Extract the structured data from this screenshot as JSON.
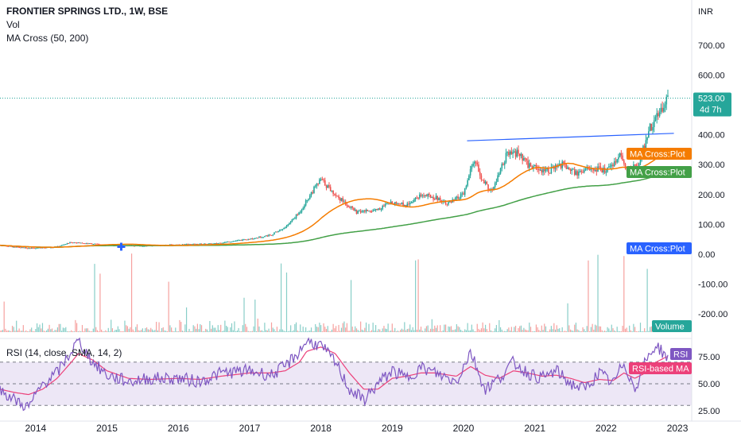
{
  "legend": {
    "symbol": "FRONTIER SPRINGS LTD., 1W, BSE",
    "vol": "Vol",
    "ma": "MA Cross (50, 200)",
    "rsi": "RSI (14, close, SMA, 14, 2)"
  },
  "colors": {
    "up": "#26a69a",
    "down": "#ef5350",
    "ma_fast": "#f57c00",
    "ma_slow": "#43a047",
    "trendline": "#2962ff",
    "rsi": "#7e57c2",
    "rsi_ma": "#ec407a",
    "rsi_band": "#ede7f6",
    "last_price": "#26a69a",
    "ma_cross_marker": "#2962ff"
  },
  "price_axis": {
    "currency": "INR",
    "ticks": [
      "700.00",
      "600.00",
      "500.00",
      "400.00",
      "300.00",
      "200.00",
      "100.00",
      "0.00",
      "-100.00",
      "-200.00"
    ]
  },
  "rsi_axis": {
    "ticks": [
      "75.00",
      "50.00",
      "25.00"
    ]
  },
  "time_axis": {
    "ticks": [
      "2014",
      "2015",
      "2016",
      "2017",
      "2018",
      "2019",
      "2020",
      "2021",
      "2022",
      "2023"
    ]
  },
  "tags": {
    "last_price": "523.00",
    "countdown": "4d 7h",
    "ma_cross_plot": "MA Cross:Plot",
    "volume": "Volume",
    "rsi": "RSI",
    "rsi_ma": "RSI-based MA"
  },
  "chart_data": {
    "type": "line",
    "title": "FRONTIER SPRINGS LTD., 1W, BSE",
    "x": [
      2013.5,
      2013.8,
      2014.0,
      2014.3,
      2014.5,
      2014.8,
      2015.0,
      2015.5,
      2016.0,
      2016.5,
      2016.8,
      2017.0,
      2017.3,
      2017.5,
      2017.7,
      2017.85,
      2018.0,
      2018.2,
      2018.5,
      2018.8,
      2019.0,
      2019.2,
      2019.4,
      2019.6,
      2019.8,
      2020.0,
      2020.15,
      2020.25,
      2020.4,
      2020.6,
      2020.75,
      2020.9,
      2021.0,
      2021.2,
      2021.4,
      2021.6,
      2021.8,
      2022.0,
      2022.2,
      2022.3,
      2022.45,
      2022.6,
      2022.7,
      2022.8,
      2022.85
    ],
    "series": [
      {
        "values": [
          30,
          22,
          20,
          25,
          40,
          35,
          30,
          28,
          32,
          35,
          45,
          50,
          65,
          90,
          140,
          200,
          250,
          200,
          140,
          150,
          175,
          165,
          200,
          190,
          170,
          200,
          320,
          250,
          210,
          330,
          340,
          300,
          290,
          280,
          300,
          270,
          290,
          280,
          330,
          280,
          300,
          420,
          450,
          500,
          523
        ]
      }
    ],
    "ylim": [
      -250,
      750
    ],
    "xlim": [
      2013.5,
      2023.2
    ],
    "trendline": [
      [
        2020.05,
        380
      ],
      [
        2022.95,
        405
      ]
    ],
    "ma_cross_marker": [
      2015.2,
      25
    ],
    "rsi": {
      "ylim": [
        20,
        95
      ],
      "bands": [
        30,
        70
      ],
      "x": [
        2013.5,
        2013.7,
        2013.9,
        2014.1,
        2014.3,
        2014.5,
        2014.6,
        2014.8,
        2015.0,
        2015.3,
        2015.6,
        2016.0,
        2016.3,
        2016.6,
        2017.0,
        2017.3,
        2017.5,
        2017.7,
        2017.8,
        2018.0,
        2018.2,
        2018.4,
        2018.6,
        2018.8,
        2019.0,
        2019.2,
        2019.4,
        2019.6,
        2019.9,
        2020.1,
        2020.3,
        2020.5,
        2020.7,
        2020.9,
        2021.1,
        2021.3,
        2021.5,
        2021.7,
        2021.9,
        2022.1,
        2022.25,
        2022.4,
        2022.55,
        2022.7,
        2022.85
      ],
      "values": [
        45,
        35,
        28,
        50,
        60,
        80,
        90,
        70,
        58,
        52,
        55,
        55,
        52,
        60,
        62,
        58,
        66,
        80,
        90,
        85,
        70,
        45,
        35,
        50,
        62,
        55,
        65,
        60,
        52,
        80,
        45,
        55,
        70,
        60,
        55,
        62,
        50,
        45,
        60,
        50,
        70,
        45,
        70,
        86,
        75
      ],
      "ma_values": [
        45,
        42,
        40,
        45,
        55,
        70,
        78,
        72,
        62,
        55,
        54,
        55,
        54,
        57,
        60,
        60,
        62,
        70,
        80,
        84,
        78,
        60,
        45,
        45,
        55,
        57,
        60,
        60,
        57,
        66,
        58,
        55,
        62,
        60,
        57,
        58,
        55,
        51,
        54,
        53,
        60,
        55,
        60,
        70,
        75
      ]
    }
  }
}
